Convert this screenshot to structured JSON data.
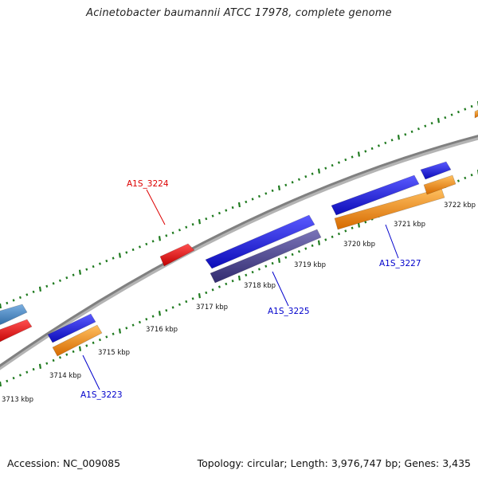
{
  "title": "Acinetobacter baumannii ATCC 17978, complete genome",
  "footer": {
    "accession": "Accession: NC_009085",
    "summary": "Topology: circular; Length: 3,976,747 bp; Genes: 3,435"
  },
  "colors": {
    "backbone": "#808080",
    "tick": "#1f7a1f",
    "blue": "#1a1aee",
    "orange": "#ff9a1a",
    "red": "#ee1111",
    "purple": "#4a4488",
    "steel": "#4a86c0",
    "label_red": "#dd0000",
    "label_blue": "#0000cc"
  },
  "ticks": [
    {
      "label": "3713 kbp"
    },
    {
      "label": "3714 kbp"
    },
    {
      "label": "3715 kbp"
    },
    {
      "label": "3716 kbp"
    },
    {
      "label": "3717 kbp"
    },
    {
      "label": "3718 kbp"
    },
    {
      "label": "3719 kbp"
    },
    {
      "label": "3720 kbp"
    },
    {
      "label": "3721 kbp"
    },
    {
      "label": "3722 kbp"
    }
  ],
  "gene_labels": [
    {
      "name": "A1S_3224",
      "color": "label_red"
    },
    {
      "name": "A1S_3225",
      "color": "label_blue"
    },
    {
      "name": "A1S_3227",
      "color": "label_blue"
    },
    {
      "name": "A1S_3223",
      "color": "label_blue"
    }
  ]
}
